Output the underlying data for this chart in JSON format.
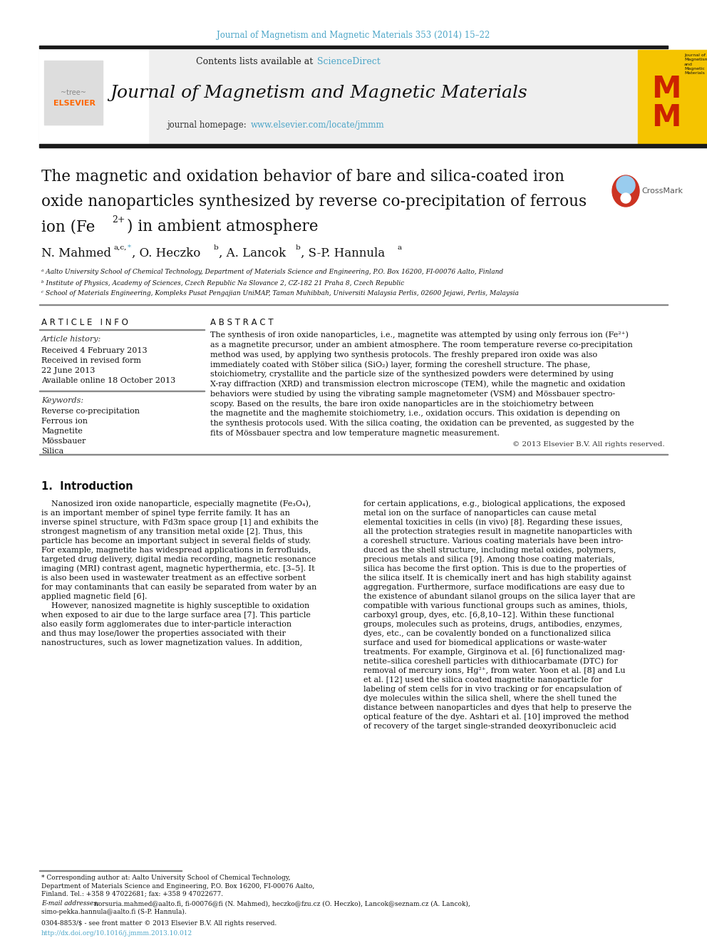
{
  "journal_ref": "Journal of Magnetism and Magnetic Materials 353 (2014) 15–22",
  "journal_ref_color": "#4da6c8",
  "sciencedirect_text": "ScienceDirect",
  "sciencedirect_color": "#4da6c8",
  "journal_title": "Journal of Magnetism and Magnetic Materials",
  "journal_homepage_url": "www.elsevier.com/locate/jmmm",
  "journal_homepage_url_color": "#4da6c8",
  "header_bar_color": "#1a1a1a",
  "article_title_line1": "The magnetic and oxidation behavior of bare and silica-coated iron",
  "article_title_line2": "oxide nanoparticles synthesized by reverse co-precipitation of ferrous",
  "affil_a": "ᵃ Aalto University School of Chemical Technology, Department of Materials Science and Engineering, P.O. Box 16200, FI-00076 Aalto, Finland",
  "affil_b": "ᵇ Institute of Physics, Academy of Sciences, Czech Republic Na Slovance 2, CZ-182 21 Praha 8, Czech Republic",
  "affil_c": "ᶜ School of Materials Engineering, Kompleks Pusat Pengajian UniMAP, Taman Muhibbah, Universiti Malaysia Perlis, 02600 Jejawi, Perlis, Malaysia",
  "article_info_title": "A R T I C L E   I N F O",
  "article_history_label": "Article history:",
  "received_text": "Received 4 February 2013",
  "revised_text": "Received in revised form",
  "revised_date": "22 June 2013",
  "available_text": "Available online 18 October 2013",
  "keywords_label": "Keywords:",
  "keyword1": "Reverse co-precipitation",
  "keyword2": "Ferrous ion",
  "keyword3": "Magnetite",
  "keyword4": "Mössbauer",
  "keyword5": "Silica",
  "abstract_title": "A B S T R A C T",
  "abstract_lines": [
    "The synthesis of iron oxide nanoparticles, i.e., magnetite was attempted by using only ferrous ion (Fe²⁺)",
    "as a magnetite precursor, under an ambient atmosphere. The room temperature reverse co-precipitation",
    "method was used, by applying two synthesis protocols. The freshly prepared iron oxide was also",
    "immediately coated with Stöber silica (SiO₂) layer, forming the coreshell structure. The phase,",
    "stoichiometry, crystallite and the particle size of the synthesized powders were determined by using",
    "X-ray diffraction (XRD) and transmission electron microscope (TEM), while the magnetic and oxidation",
    "behaviors were studied by using the vibrating sample magnetometer (VSM) and Mössbauer spectro-",
    "scopy. Based on the results, the bare iron oxide nanoparticles are in the stoichiometry between",
    "the magnetite and the maghemite stoichiometry, i.e., oxidation occurs. This oxidation is depending on",
    "the synthesis protocols used. With the silica coating, the oxidation can be prevented, as suggested by the",
    "fits of Mössbauer spectra and low temperature magnetic measurement."
  ],
  "copyright_text": "© 2013 Elsevier B.V. All rights reserved.",
  "intro_title": "1.  Introduction",
  "intro_col1": [
    "    Nanosized iron oxide nanoparticle, especially magnetite (Fe₃O₄),",
    "is an important member of spinel type ferrite family. It has an",
    "inverse spinel structure, with Fd3m space group [1] and exhibits the",
    "strongest magnetism of any transition metal oxide [2]. Thus, this",
    "particle has become an important subject in several fields of study.",
    "For example, magnetite has widespread applications in ferrofluids,",
    "targeted drug delivery, digital media recording, magnetic resonance",
    "imaging (MRI) contrast agent, magnetic hyperthermia, etc. [3–5]. It",
    "is also been used in wastewater treatment as an effective sorbent",
    "for may contaminants that can easily be separated from water by an",
    "applied magnetic field [6].",
    "    However, nanosized magnetite is highly susceptible to oxidation",
    "when exposed to air due to the large surface area [7]. This particle",
    "also easily form agglomerates due to inter-particle interaction",
    "and thus may lose/lower the properties associated with their",
    "nanostructures, such as lower magnetization values. In addition,"
  ],
  "intro_col2": [
    "for certain applications, e.g., biological applications, the exposed",
    "metal ion on the surface of nanoparticles can cause metal",
    "elemental toxicities in cells (in vivo) [8]. Regarding these issues,",
    "all the protection strategies result in magnetite nanoparticles with",
    "a coreshell structure. Various coating materials have been intro-",
    "duced as the shell structure, including metal oxides, polymers,",
    "precious metals and silica [9]. Among those coating materials,",
    "silica has become the first option. This is due to the properties of",
    "the silica itself. It is chemically inert and has high stability against",
    "aggregation. Furthermore, surface modifications are easy due to",
    "the existence of abundant silanol groups on the silica layer that are",
    "compatible with various functional groups such as amines, thiols,",
    "carboxyl group, dyes, etc. [6,8,10–12]. Within these functional",
    "groups, molecules such as proteins, drugs, antibodies, enzymes,",
    "dyes, etc., can be covalently bonded on a functionalized silica",
    "surface and used for biomedical applications or waste-water",
    "treatments. For example, Girginova et al. [6] functionalized mag-",
    "netite–silica coreshell particles with dithiocarbamate (DTC) for",
    "removal of mercury ions, Hg²⁺, from water. Yoon et al. [8] and Lu",
    "et al. [12] used the silica coated magnetite nanoparticle for",
    "labeling of stem cells for in vivo tracking or for encapsulation of",
    "dye molecules within the silica shell, where the shell tuned the",
    "distance between nanoparticles and dyes that help to preserve the",
    "optical feature of the dye. Ashtari et al. [10] improved the method",
    "of recovery of the target single-stranded deoxyribonucleic acid"
  ],
  "footnote_lines": [
    "* Corresponding author at: Aalto University School of Chemical Technology,",
    "Department of Materials Science and Engineering, P.O. Box 16200, FI-00076 Aalto,",
    "Finland. Tel.: +358 9 47022681; fax: +358 9 47022677."
  ],
  "footnote_email_label": "E-mail addresses:",
  "footnote_email_lines": [
    "norsuria.mahmed@aalto.fi, fi-00076@fi (N. Mahmed), heczko@fzu.cz (O. Heczko), Lancok@seznam.cz (A. Lancok),",
    "simo-pekka.hannula@aalto.fi (S-P. Hannula)."
  ],
  "issn_text": "0304-8853/$ - see front matter © 2013 Elsevier B.V. All rights reserved.",
  "doi_text": "http://dx.doi.org/10.1016/j.jmmm.2013.10.012",
  "doi_color": "#4da6c8",
  "elsevier_color": "#ff6600",
  "mm_yellow": "#f5c400",
  "mm_red": "#cc2200",
  "background_color": "#ffffff"
}
